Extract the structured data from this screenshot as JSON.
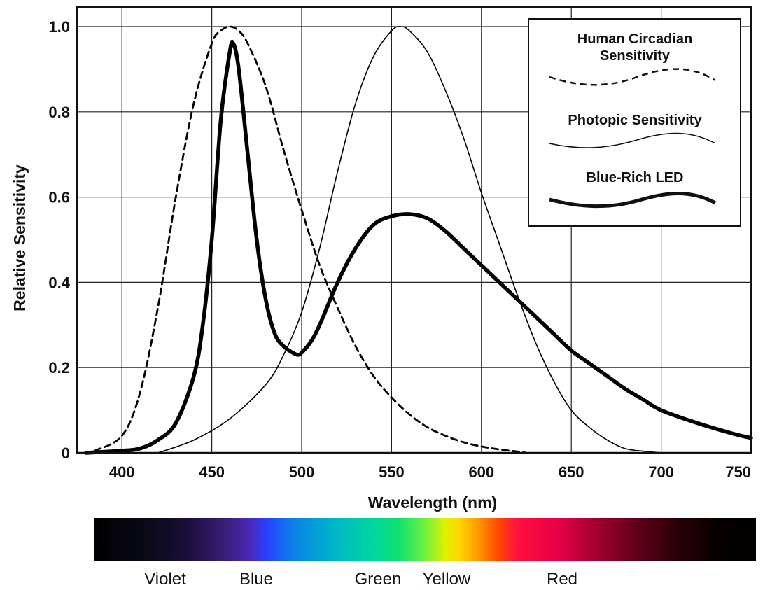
{
  "chart_data": {
    "type": "line",
    "xlabel": "Wavelength (nm)",
    "ylabel": "Relative Sensitivity",
    "xlim": [
      375,
      750
    ],
    "ylim": [
      0,
      1.0
    ],
    "x_ticks": [
      "400",
      "450",
      "500",
      "550",
      "600",
      "650",
      "700",
      "750"
    ],
    "y_ticks": [
      "0",
      "0.2",
      "0.4",
      "0.6",
      "0.8",
      "1.0"
    ],
    "grid": true,
    "legend_position": "top-right",
    "series": [
      {
        "name": "Human Circadian Sensitivity",
        "style": "dashed",
        "color": "#000000",
        "x": [
          385,
          400,
          410,
          420,
          430,
          440,
          450,
          455,
          460,
          465,
          470,
          480,
          490,
          500,
          510,
          520,
          530,
          540,
          550,
          560,
          570,
          580,
          590,
          600,
          610,
          620,
          625
        ],
        "y": [
          0.005,
          0.04,
          0.14,
          0.34,
          0.6,
          0.82,
          0.96,
          0.99,
          1.0,
          0.99,
          0.96,
          0.86,
          0.71,
          0.57,
          0.44,
          0.34,
          0.25,
          0.18,
          0.13,
          0.09,
          0.06,
          0.04,
          0.025,
          0.015,
          0.008,
          0.003,
          0.0
        ]
      },
      {
        "name": "Photopic Sensitivity",
        "style": "solid-thin",
        "color": "#000000",
        "x": [
          420,
          440,
          460,
          480,
          490,
          500,
          510,
          520,
          530,
          540,
          550,
          555,
          560,
          570,
          580,
          590,
          600,
          610,
          620,
          630,
          640,
          650,
          660,
          670,
          680,
          690,
          700
        ],
        "y": [
          0.0,
          0.03,
          0.08,
          0.16,
          0.23,
          0.33,
          0.48,
          0.66,
          0.82,
          0.93,
          0.99,
          1.0,
          0.99,
          0.94,
          0.85,
          0.74,
          0.61,
          0.49,
          0.37,
          0.26,
          0.17,
          0.1,
          0.06,
          0.03,
          0.01,
          0.004,
          0.0
        ]
      },
      {
        "name": "Blue-Rich LED",
        "style": "solid-thick",
        "color": "#000000",
        "x": [
          380,
          400,
          410,
          420,
          430,
          440,
          445,
          450,
          455,
          460,
          462,
          465,
          470,
          475,
          480,
          485,
          490,
          495,
          498,
          500,
          505,
          510,
          520,
          530,
          540,
          550,
          560,
          570,
          580,
          590,
          600,
          610,
          620,
          630,
          640,
          650,
          660,
          670,
          680,
          690,
          700,
          720,
          740,
          750
        ],
        "y": [
          0.0,
          0.005,
          0.01,
          0.03,
          0.07,
          0.18,
          0.3,
          0.5,
          0.78,
          0.94,
          0.96,
          0.9,
          0.7,
          0.5,
          0.36,
          0.28,
          0.25,
          0.235,
          0.23,
          0.235,
          0.26,
          0.3,
          0.4,
          0.48,
          0.535,
          0.555,
          0.56,
          0.55,
          0.52,
          0.48,
          0.44,
          0.4,
          0.36,
          0.32,
          0.28,
          0.24,
          0.21,
          0.18,
          0.15,
          0.125,
          0.1,
          0.07,
          0.045,
          0.035
        ]
      }
    ]
  },
  "legend": {
    "circadian_line1": "Human Circadian",
    "circadian_line2": "Sensitivity",
    "photopic": "Photopic Sensitivity",
    "led": "Blue-Rich LED"
  },
  "spectrum": {
    "labels": [
      "Violet",
      "Blue",
      "Green",
      "Yellow",
      "Red"
    ]
  }
}
